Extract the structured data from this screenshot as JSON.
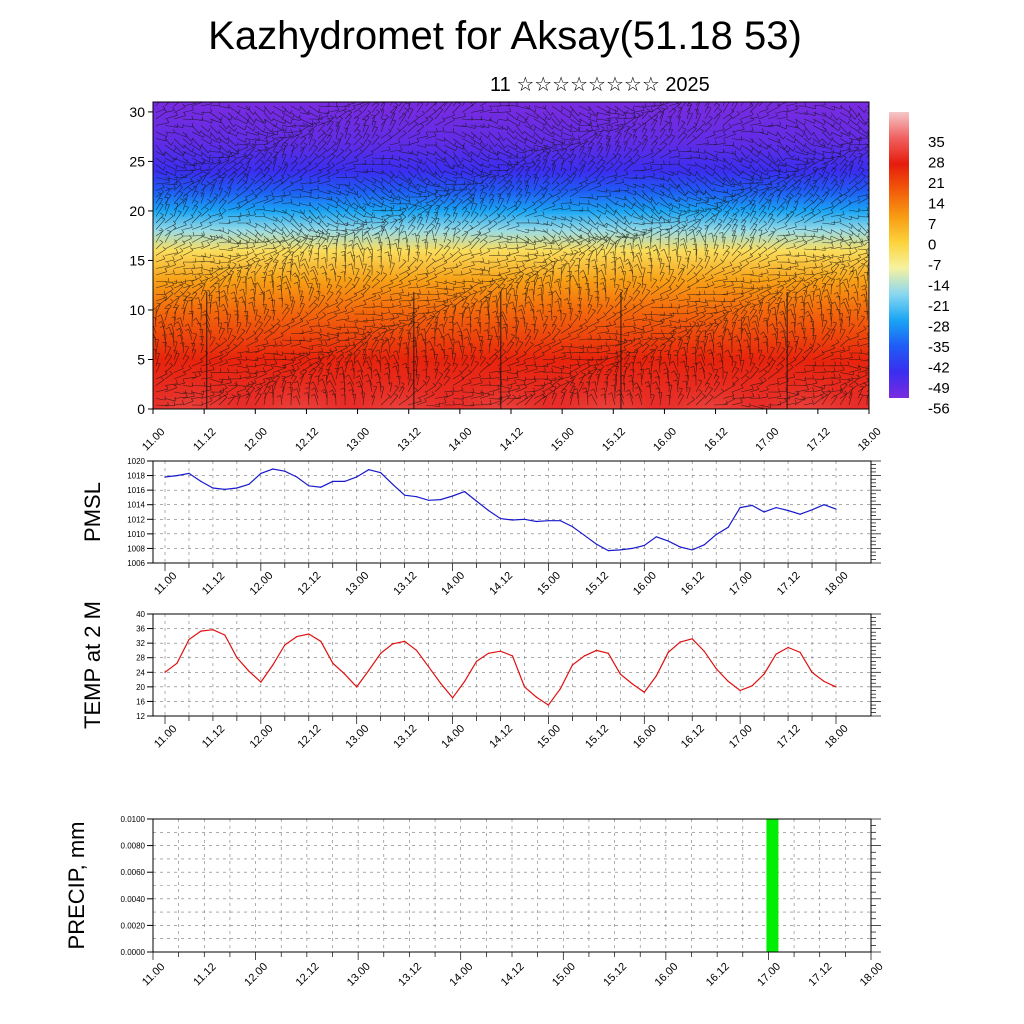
{
  "title": "Kazhydromet for Aksay(51.18 53)",
  "subtitle": "11 ☆☆☆☆☆☆☆☆ 2025",
  "colors": {
    "pmsl_line": "#1a1acc",
    "temp_line": "#e01010",
    "precip_bar": "#00ee00",
    "colormap": [
      "#7a2be0",
      "#3a2ef0",
      "#1f5cf5",
      "#1aa5f5",
      "#8ad8f0",
      "#f7f2a0",
      "#fcd23a",
      "#f89a12",
      "#f25a0a",
      "#e61c0c",
      "#f06060",
      "#f5c8c8"
    ]
  },
  "chart_data": [
    {
      "type": "heatmap",
      "name": "vertical cross-section",
      "xlabel": "",
      "ylabel": "",
      "x_ticks": [
        "11.00",
        "11.12",
        "12.00",
        "12.12",
        "13.00",
        "13.12",
        "14.00",
        "14.12",
        "15.00",
        "15.12",
        "16.00",
        "16.12",
        "17.00",
        "17.12",
        "18.00"
      ],
      "y_ticks": [
        "0",
        "5",
        "10",
        "15",
        "20",
        "25",
        "30"
      ],
      "ylim": [
        0,
        31
      ],
      "colorbar_labels": [
        "35",
        "28",
        "21",
        "14",
        "7",
        "0",
        "-7",
        "-14",
        "-21",
        "-28",
        "-35",
        "-42",
        "-49",
        "-56"
      ],
      "levels_temperature": [
        {
          "level": 0,
          "value": 30
        },
        {
          "level": 5,
          "value": 21
        },
        {
          "level": 10,
          "value": 12
        },
        {
          "level": 13,
          "value": 5
        },
        {
          "level": 16,
          "value": -5
        },
        {
          "level": 18,
          "value": -15
        },
        {
          "level": 20,
          "value": -28
        },
        {
          "level": 22,
          "value": -40
        },
        {
          "level": 24,
          "value": -50
        },
        {
          "level": 27,
          "value": -55
        },
        {
          "level": 31,
          "value": -58
        }
      ],
      "has_wind_barbs": true,
      "grid": false
    },
    {
      "type": "line",
      "ylabel": "PMSL",
      "x_ticks": [
        "11.00",
        "11.12",
        "12.00",
        "12.12",
        "13.00",
        "13.12",
        "14.00",
        "14.12",
        "15.00",
        "15.12",
        "16.00",
        "16.12",
        "17.00",
        "17.12",
        "18.00"
      ],
      "y_ticks": [
        "1006",
        "1008",
        "1010",
        "1012",
        "1014",
        "1016",
        "1018",
        "1020"
      ],
      "ylim": [
        1006,
        1020
      ],
      "x": [
        0,
        1.5,
        3,
        4.5,
        6,
        7.5,
        9,
        10.5,
        12,
        13.5,
        15,
        16.5,
        18,
        19.5,
        21,
        22.5,
        24,
        25.5,
        27,
        28.5,
        30,
        31.5,
        33,
        34.5,
        36,
        37.5,
        39,
        40.5,
        42,
        43.5,
        45,
        46.5,
        48,
        49.5,
        51,
        52.5,
        54,
        55.5,
        57,
        58.5,
        60,
        61.5,
        63,
        64.5,
        66,
        67.5,
        69,
        70.5,
        72,
        73.5,
        75,
        76.5,
        78,
        79.5,
        81,
        82.5,
        84
      ],
      "series": [
        {
          "values": [
            1017.8,
            1018.0,
            1018.3,
            1017.2,
            1016.3,
            1016.1,
            1016.3,
            1016.8,
            1018.3,
            1018.9,
            1018.6,
            1017.8,
            1016.6,
            1016.4,
            1017.2,
            1017.2,
            1017.8,
            1018.8,
            1018.4,
            1016.8,
            1015.3,
            1015.1,
            1014.6,
            1014.7,
            1015.2,
            1015.8,
            1014.5,
            1013.2,
            1012.1,
            1011.9,
            1012.0,
            1011.7,
            1011.8,
            1011.8,
            1011.0,
            1009.8,
            1008.6,
            1007.7,
            1007.8,
            1008.0,
            1008.4,
            1009.6,
            1009.0,
            1008.2,
            1007.8,
            1008.5,
            1009.9,
            1010.9,
            1013.6,
            1013.9,
            1013.0,
            1013.6,
            1013.2,
            1012.7,
            1013.3,
            1014.0,
            1013.4
          ]
        }
      ],
      "grid": true
    },
    {
      "type": "line",
      "ylabel": "TEMP at 2 M",
      "x_ticks": [
        "11.00",
        "11.12",
        "12.00",
        "12.12",
        "13.00",
        "13.12",
        "14.00",
        "14.12",
        "15.00",
        "15.12",
        "16.00",
        "16.12",
        "17.00",
        "17.12",
        "18.00"
      ],
      "y_ticks": [
        "12",
        "16",
        "20",
        "24",
        "28",
        "32",
        "36",
        "40"
      ],
      "ylim": [
        12,
        40
      ],
      "x": [
        0,
        1.5,
        3,
        4.5,
        6,
        7.5,
        9,
        10.5,
        12,
        13.5,
        15,
        16.5,
        18,
        19.5,
        21,
        22.5,
        24,
        25.5,
        27,
        28.5,
        30,
        31.5,
        33,
        34.5,
        36,
        37.5,
        39,
        40.5,
        42,
        43.5,
        45,
        46.5,
        48,
        49.5,
        51,
        52.5,
        54,
        55.5,
        57,
        58.5,
        60,
        61.5,
        63,
        64.5,
        66,
        67.5,
        69,
        70.5,
        72,
        73.5,
        75,
        76.5,
        78,
        79.5,
        81,
        82.5,
        84
      ],
      "series": [
        {
          "values": [
            24,
            26.5,
            33,
            35.3,
            35.7,
            34.2,
            28,
            24.3,
            21.3,
            26,
            31.5,
            33.8,
            34.5,
            32.5,
            26.5,
            23.5,
            20,
            24.5,
            29.2,
            31.8,
            32.5,
            30,
            25.5,
            21,
            17,
            21.5,
            27,
            29.2,
            29.8,
            28.5,
            20,
            17.2,
            15,
            19.5,
            26,
            28.5,
            30,
            29.2,
            23.5,
            20.8,
            18.5,
            23,
            29.5,
            32.3,
            33.2,
            29.8,
            25,
            21.5,
            19,
            20.3,
            23.5,
            29,
            30.8,
            29.5,
            24,
            21.5,
            20
          ]
        }
      ],
      "grid": true
    },
    {
      "type": "bar",
      "ylabel": "PRECIP, mm",
      "x_ticks": [
        "11.00",
        "11.12",
        "12.00",
        "12.12",
        "13.00",
        "13.12",
        "14.00",
        "14.12",
        "15.00",
        "15.12",
        "16.00",
        "16.12",
        "17.00",
        "17.12",
        "18.00"
      ],
      "y_ticks": [
        "0.0000",
        "0.0020",
        "0.0040",
        "0.0060",
        "0.0080",
        "0.0100"
      ],
      "ylim": [
        0,
        0.01
      ],
      "bars": [
        {
          "x": 72,
          "value": 0.01
        }
      ],
      "grid": true
    }
  ]
}
